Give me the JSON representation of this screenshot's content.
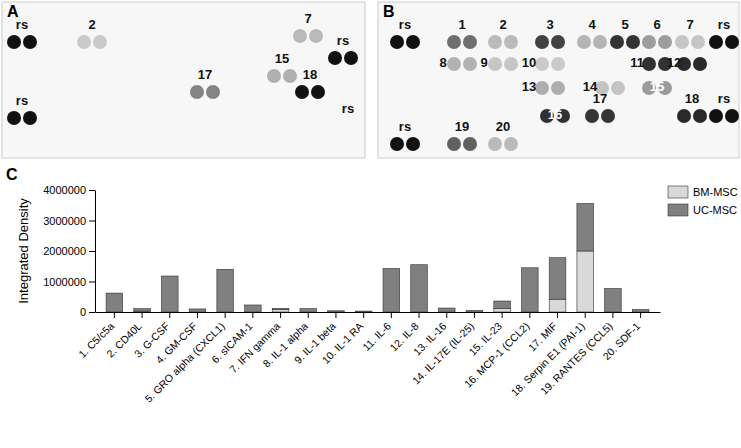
{
  "figure": {
    "panels": [
      {
        "label": "A",
        "spots": [
          "rs",
          "2",
          "7",
          "rs",
          "15",
          "17",
          "18",
          "rs",
          "rs"
        ]
      },
      {
        "label": "B",
        "spots": [
          "rs",
          "1",
          "2",
          "3",
          "4",
          "5",
          "6",
          "7",
          "rs",
          "8",
          "9",
          "10",
          "11",
          "12",
          "13",
          "14",
          "15",
          "16",
          "17",
          "18",
          "rs",
          "rs",
          "19",
          "20"
        ]
      }
    ],
    "chart_label": "C"
  },
  "chart_data": {
    "type": "bar",
    "stacked": true,
    "y_label": "Integrated Density",
    "categories": [
      "1. C5/c5a",
      "2. CD40L",
      "3. G-CSF",
      "4. GM-CSF",
      "5. GRO alpha (CXCL1)",
      "6. sICAM-1",
      "7. IFN gamma",
      "8. IL-1 alpha",
      "9. IL-1  beta",
      "10. IL-1 RA",
      "11. IL-6",
      "12. IL-8",
      "13. IL-16",
      "14. IL-17E (IL-25)",
      "15. IL-23",
      "16. MCP-1 (CCL2)",
      "17. MIF",
      "18. Serpin E1 (PAI-1)",
      "19. RANTES (CCL5)",
      "20. SDF-1"
    ],
    "series": [
      {
        "name": "BM-MSC",
        "color": "#d9d9d9",
        "values": [
          0,
          30000,
          0,
          0,
          0,
          0,
          80000,
          0,
          0,
          0,
          0,
          0,
          0,
          0,
          120000,
          0,
          420000,
          2000000,
          0,
          0
        ]
      },
      {
        "name": "UC-MSC",
        "color": "#808080",
        "values": [
          620000,
          80000,
          1180000,
          100000,
          1400000,
          230000,
          40000,
          110000,
          40000,
          30000,
          1430000,
          1550000,
          130000,
          50000,
          240000,
          1450000,
          1360000,
          1560000,
          770000,
          80000
        ]
      }
    ],
    "ylim": [
      0,
      4000000
    ],
    "yticks": [
      0,
      1000000,
      2000000,
      3000000,
      4000000
    ],
    "grid": false,
    "legend": "top-right"
  }
}
